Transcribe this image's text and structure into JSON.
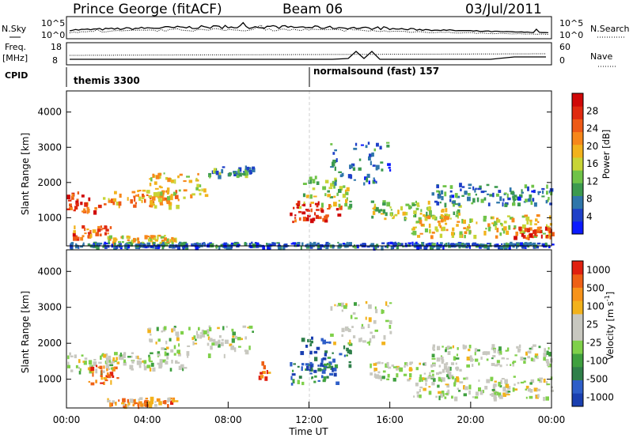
{
  "header": {
    "station": "Prince George (fitACF)",
    "beam": "Beam 06",
    "date": "03/Jul/2011"
  },
  "status_panels": {
    "nsky_label": "N.Sky",
    "nsky_ticks": [
      "10^5",
      "10^0"
    ],
    "nsearch_label": "N.Search",
    "nsearch_ticks": [
      "10^5",
      "10^0"
    ],
    "freq_label": "Freq.",
    "freq_unit": "[MHz]",
    "freq_ticks": [
      "18",
      "8"
    ],
    "nave_label": "Nave",
    "nave_ticks": [
      "60",
      "0"
    ],
    "cpid_label": "CPID",
    "cpid_segments": [
      "themis 3300",
      "normalsound (fast) 157"
    ]
  },
  "chart_data": [
    {
      "type": "heatmap",
      "name": "power",
      "xlabel": "",
      "ylabel": "Slant Range [km]",
      "yticks": [
        "1000",
        "2000",
        "3000",
        "4000"
      ],
      "ylim": [
        200,
        4600
      ],
      "xlim": [
        "00:00",
        "24:00"
      ],
      "colorbar": {
        "label": "Power [dB]",
        "ticks": [
          "4",
          "8",
          "12",
          "16",
          "20",
          "24",
          "28"
        ],
        "colors": [
          "#0b1aff",
          "#1e40c8",
          "#2f76aa",
          "#3c9a4f",
          "#6fc348",
          "#c8d436",
          "#f2b21c",
          "#f7871a",
          "#ee5a16",
          "#e02a10",
          "#d00808"
        ]
      },
      "bands": [
        {
          "t0": 0.0,
          "t1": 1.6,
          "r0": 1200,
          "r1": 1750,
          "level": 0.8
        },
        {
          "t0": 0.3,
          "t1": 2.2,
          "r0": 450,
          "r1": 800,
          "level": 0.75
        },
        {
          "t0": 1.8,
          "t1": 5.6,
          "r0": 1350,
          "r1": 1800,
          "level": 0.65
        },
        {
          "t0": 4.0,
          "t1": 7.0,
          "r0": 1600,
          "r1": 2300,
          "level": 0.55
        },
        {
          "t0": 6.8,
          "t1": 9.2,
          "r0": 2200,
          "r1": 2500,
          "level": 0.3
        },
        {
          "t0": 2.0,
          "t1": 5.5,
          "r0": 300,
          "r1": 520,
          "level": 0.55
        },
        {
          "t0": 11.0,
          "t1": 13.5,
          "r0": 900,
          "r1": 1500,
          "level": 0.9
        },
        {
          "t0": 11.5,
          "t1": 14.0,
          "r0": 1300,
          "r1": 2200,
          "level": 0.45
        },
        {
          "t0": 13.0,
          "t1": 16.0,
          "r0": 2000,
          "r1": 3200,
          "level": 0.2
        },
        {
          "t0": 15.0,
          "t1": 19.5,
          "r0": 1000,
          "r1": 1500,
          "level": 0.45
        },
        {
          "t0": 17.0,
          "t1": 24.0,
          "r0": 500,
          "r1": 1100,
          "level": 0.55
        },
        {
          "t0": 22.0,
          "t1": 24.0,
          "r0": 450,
          "r1": 750,
          "level": 0.85
        },
        {
          "t0": 18.0,
          "t1": 24.0,
          "r0": 1400,
          "r1": 2000,
          "level": 0.25
        },
        {
          "t0": 0.0,
          "t1": 24.0,
          "r0": 200,
          "r1": 320,
          "level": 0.2
        }
      ]
    },
    {
      "type": "heatmap",
      "name": "velocity",
      "xlabel": "Time UT",
      "ylabel": "Slant Range [km]",
      "yticks": [
        "1000",
        "2000",
        "3000",
        "4000"
      ],
      "ylim": [
        200,
        4600
      ],
      "xticks": [
        "00:00",
        "04:00",
        "08:00",
        "12:00",
        "16:00",
        "20:00",
        "00:00"
      ],
      "xlim": [
        "00:00",
        "24:00"
      ],
      "colorbar": {
        "label": "Velocity [m s",
        "label_sup": "-1",
        "label_end": "]",
        "ticks": [
          "1000",
          "500",
          "100",
          "25",
          "-25",
          "-100",
          "-500",
          "-1000"
        ],
        "colors": [
          "#1a3fb0",
          "#2e5ec8",
          "#2f7f4a",
          "#3fa03f",
          "#7fd04a",
          "#c8c8c0",
          "#c8c8c0",
          "#f2b21c",
          "#f7931a",
          "#ee6016",
          "#e02010"
        ]
      },
      "bands": [
        {
          "t0": 0.0,
          "t1": 1.8,
          "r0": 1200,
          "r1": 1750,
          "level": 0.5
        },
        {
          "t0": 1.0,
          "t1": 2.5,
          "r0": 900,
          "r1": 1400,
          "level": 0.85
        },
        {
          "t0": 1.8,
          "t1": 5.8,
          "r0": 1300,
          "r1": 1800,
          "level": 0.5
        },
        {
          "t0": 4.0,
          "t1": 9.2,
          "r0": 1700,
          "r1": 2500,
          "level": 0.5
        },
        {
          "t0": 2.0,
          "t1": 5.5,
          "r0": 300,
          "r1": 520,
          "level": 0.75
        },
        {
          "t0": 11.0,
          "t1": 13.5,
          "r0": 900,
          "r1": 1500,
          "level": 0.25
        },
        {
          "t0": 11.5,
          "t1": 14.0,
          "r0": 1300,
          "r1": 2200,
          "level": 0.15
        },
        {
          "t0": 13.0,
          "t1": 16.0,
          "r0": 2000,
          "r1": 3200,
          "level": 0.5
        },
        {
          "t0": 15.0,
          "t1": 19.5,
          "r0": 1000,
          "r1": 1500,
          "level": 0.5
        },
        {
          "t0": 17.0,
          "t1": 24.0,
          "r0": 500,
          "r1": 1100,
          "level": 0.5
        },
        {
          "t0": 18.0,
          "t1": 24.0,
          "r0": 1400,
          "r1": 2000,
          "level": 0.5
        },
        {
          "t0": 9.5,
          "t1": 10.0,
          "r0": 1000,
          "r1": 1500,
          "level": 0.85
        }
      ]
    }
  ]
}
